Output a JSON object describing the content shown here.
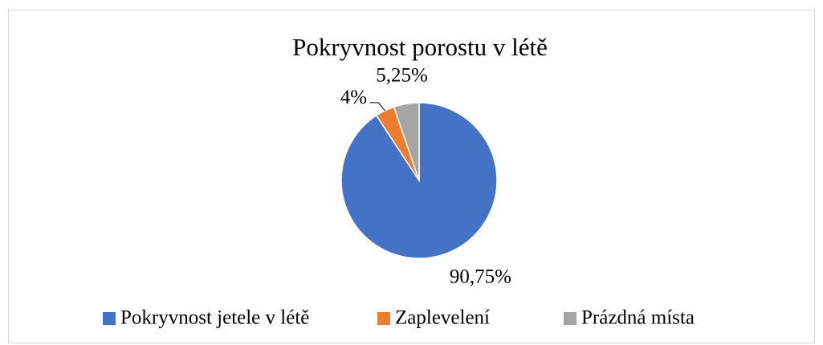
{
  "chart_data": {
    "type": "pie",
    "title": "Pokryvnost porostu v létě",
    "categories": [
      "Pokryvnost jetele v létě",
      "Zaplevelení",
      "Prázdná místa"
    ],
    "values": [
      90.75,
      4,
      5.25
    ],
    "value_labels": [
      "90,75%",
      "4%",
      "5,25%"
    ],
    "colors": [
      "#4472c4",
      "#ed7d31",
      "#a5a5a5"
    ],
    "legend": "bottom"
  }
}
